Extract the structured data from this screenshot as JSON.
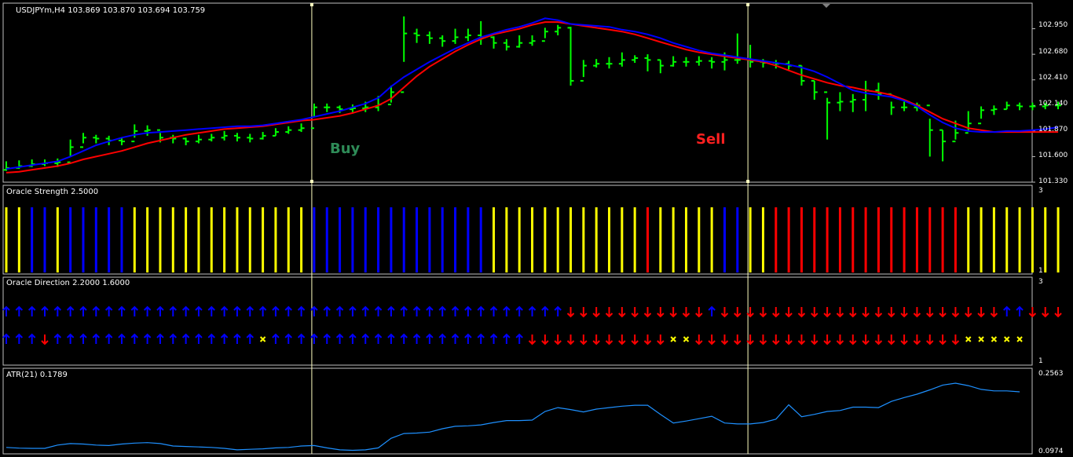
{
  "colors": {
    "background": "#000000",
    "frame": "#c0c0c0",
    "bar_up": "#00ff00",
    "ma_fast": "#0000ff",
    "ma_slow": "#ff0000",
    "strength_yellow": "#ffff00",
    "strength_blue": "#0000ff",
    "strength_red": "#ff0000",
    "arrow_up": "#0000ff",
    "arrow_down": "#ff0000",
    "cross": "#ffff00",
    "atr_line": "#1e90ff",
    "vline": "#ffffc0",
    "buy": "#2e8b57",
    "sell": "#ff2020"
  },
  "chart_data": [
    {
      "type": "ohlc",
      "name": "price",
      "header": "USDJPYm,H4  103.869 103.870 103.694 103.759",
      "ylim": [
        101.33,
        103.22
      ],
      "yticks": [
        "102.950",
        "102.680",
        "102.410",
        "102.140",
        "101.870",
        "101.600",
        "101.330"
      ],
      "ytick_values": [
        102.95,
        102.68,
        102.41,
        102.14,
        101.87,
        101.6,
        101.33
      ],
      "signals": [
        {
          "label": "Buy",
          "bar": 24
        },
        {
          "label": "Sell",
          "bar": 58
        }
      ],
      "close": [
        101.48,
        101.5,
        101.52,
        101.53,
        101.54,
        101.7,
        101.8,
        101.79,
        101.77,
        101.76,
        101.87,
        101.88,
        101.8,
        101.79,
        101.76,
        101.78,
        101.8,
        101.82,
        101.8,
        101.79,
        101.82,
        101.86,
        101.88,
        101.9,
        102.12,
        102.12,
        102.1,
        102.11,
        102.12,
        102.15,
        102.28,
        102.9,
        102.88,
        102.85,
        102.82,
        102.86,
        102.88,
        102.86,
        102.8,
        102.76,
        102.8,
        102.82,
        102.92,
        102.96,
        102.4,
        102.56,
        102.58,
        102.58,
        102.62,
        102.64,
        102.62,
        102.56,
        102.6,
        102.6,
        102.61,
        102.6,
        102.62,
        102.62,
        102.6,
        102.59,
        102.58,
        102.56,
        102.4,
        102.28,
        102.17,
        102.18,
        102.2,
        102.3,
        102.26,
        102.12,
        102.12,
        102.14,
        101.88,
        101.76,
        101.85,
        101.95,
        102.09,
        102.1,
        102.14,
        102.13,
        102.13,
        102.14,
        102.14
      ],
      "high": [
        101.55,
        101.56,
        101.57,
        101.57,
        101.58,
        101.78,
        101.85,
        101.83,
        101.82,
        101.8,
        101.94,
        101.93,
        101.85,
        101.83,
        101.8,
        101.83,
        101.84,
        101.87,
        101.85,
        101.84,
        101.86,
        101.9,
        101.92,
        101.95,
        102.16,
        102.16,
        102.14,
        102.15,
        102.18,
        102.24,
        102.35,
        103.08,
        102.95,
        102.92,
        102.88,
        102.95,
        102.95,
        103.03,
        102.87,
        102.84,
        102.88,
        102.88,
        102.96,
        102.99,
        102.97,
        102.62,
        102.63,
        102.65,
        102.7,
        102.67,
        102.68,
        102.62,
        102.66,
        102.65,
        102.66,
        102.65,
        102.7,
        102.9,
        102.78,
        102.63,
        102.62,
        102.61,
        102.56,
        102.4,
        102.22,
        102.28,
        102.26,
        102.4,
        102.38,
        102.18,
        102.18,
        102.17,
        102.0,
        101.88,
        101.98,
        102.08,
        102.13,
        102.14,
        102.18,
        102.17,
        102.17,
        102.17,
        102.18
      ],
      "low": [
        101.45,
        101.47,
        101.49,
        101.5,
        101.49,
        101.6,
        101.74,
        101.74,
        101.72,
        101.72,
        101.8,
        101.82,
        101.75,
        101.74,
        101.72,
        101.74,
        101.76,
        101.77,
        101.76,
        101.75,
        101.78,
        101.82,
        101.84,
        101.86,
        102.02,
        102.07,
        102.06,
        102.07,
        102.07,
        102.08,
        102.17,
        102.6,
        102.8,
        102.79,
        102.76,
        102.79,
        102.82,
        102.78,
        102.74,
        102.72,
        102.75,
        102.77,
        102.85,
        102.88,
        102.35,
        102.44,
        102.54,
        102.53,
        102.55,
        102.59,
        102.5,
        102.48,
        102.55,
        102.55,
        102.56,
        102.53,
        102.51,
        102.58,
        102.54,
        102.54,
        102.53,
        102.52,
        102.35,
        102.2,
        101.78,
        102.08,
        102.07,
        102.08,
        102.2,
        102.04,
        102.08,
        102.08,
        101.6,
        101.55,
        101.78,
        101.87,
        102.0,
        102.04,
        102.1,
        102.09,
        102.09,
        102.1,
        102.1
      ],
      "ma_fast": [
        101.47,
        101.49,
        101.51,
        101.53,
        101.55,
        101.6,
        101.66,
        101.72,
        101.76,
        101.8,
        101.83,
        101.85,
        101.86,
        101.87,
        101.88,
        101.89,
        101.9,
        101.91,
        101.92,
        101.92,
        101.93,
        101.95,
        101.97,
        101.99,
        102.02,
        102.05,
        102.08,
        102.12,
        102.16,
        102.22,
        102.34,
        102.44,
        102.52,
        102.6,
        102.67,
        102.74,
        102.8,
        102.86,
        102.9,
        102.94,
        102.97,
        103.01,
        103.06,
        103.04,
        103.0,
        102.99,
        102.98,
        102.97,
        102.94,
        102.92,
        102.89,
        102.85,
        102.8,
        102.76,
        102.72,
        102.69,
        102.67,
        102.65,
        102.63,
        102.61,
        102.59,
        102.57,
        102.54,
        102.5,
        102.44,
        102.37,
        102.3,
        102.27,
        102.25,
        102.23,
        102.19,
        102.13,
        102.04,
        101.96,
        101.9,
        101.87,
        101.86,
        101.86,
        101.87,
        101.87,
        101.88,
        101.89,
        101.91
      ],
      "ma_slow": [
        101.43,
        101.44,
        101.46,
        101.48,
        101.5,
        101.53,
        101.57,
        101.6,
        101.63,
        101.66,
        101.7,
        101.74,
        101.77,
        101.8,
        101.83,
        101.85,
        101.87,
        101.89,
        101.9,
        101.91,
        101.92,
        101.94,
        101.96,
        101.98,
        101.99,
        102.01,
        102.03,
        102.06,
        102.1,
        102.14,
        102.21,
        102.33,
        102.45,
        102.55,
        102.63,
        102.71,
        102.78,
        102.84,
        102.89,
        102.92,
        102.95,
        102.99,
        103.02,
        103.02,
        103.0,
        102.98,
        102.96,
        102.94,
        102.92,
        102.89,
        102.85,
        102.81,
        102.77,
        102.73,
        102.7,
        102.68,
        102.66,
        102.64,
        102.62,
        102.6,
        102.56,
        102.51,
        102.46,
        102.42,
        102.38,
        102.35,
        102.33,
        102.3,
        102.28,
        102.25,
        102.2,
        102.14,
        102.07,
        102.0,
        101.95,
        101.9,
        101.88,
        101.86,
        101.86,
        101.86,
        101.86,
        101.86,
        101.86
      ]
    },
    {
      "type": "bar",
      "name": "strength",
      "header": "Oracle Strength 2.5000",
      "yticks": [
        "3",
        "1"
      ],
      "colors": [
        "y",
        "y",
        "b",
        "b",
        "y",
        "b",
        "b",
        "b",
        "b",
        "b",
        "y",
        "y",
        "y",
        "y",
        "y",
        "y",
        "y",
        "y",
        "y",
        "y",
        "y",
        "y",
        "y",
        "y",
        "b",
        "b",
        "b",
        "b",
        "b",
        "b",
        "b",
        "b",
        "b",
        "b",
        "b",
        "b",
        "b",
        "b",
        "y",
        "y",
        "y",
        "y",
        "y",
        "y",
        "y",
        "y",
        "y",
        "y",
        "y",
        "y",
        "r",
        "y",
        "y",
        "y",
        "y",
        "y",
        "b",
        "b",
        "y",
        "y",
        "r",
        "r",
        "r",
        "r",
        "r",
        "r",
        "r",
        "r",
        "r",
        "r",
        "r",
        "r",
        "r",
        "r",
        "r",
        "y",
        "y",
        "y",
        "y",
        "y",
        "y",
        "y",
        "y"
      ]
    },
    {
      "type": "scatter",
      "name": "direction",
      "header": "Oracle Direction 2.2000 1.6000",
      "yticks": [
        "3",
        "1"
      ],
      "row1": "UUUUUUUUUUUUUUUUUUUUUUUUUUUUUUUUUUUUUUUUUUUUDDDDDDDDDDDUDDDDDDDDDDDDDDDDDDDDDDUUDDD",
      "row2": "UUUDUUUUUUUUUUUUUUUUXUUUUUUUUUUUUUUUUUUUUDDDDDDDDDDDXXDDDDDDDDDDDDDDDDDDDDDXXXXX"
    },
    {
      "type": "line",
      "name": "atr",
      "header": "ATR(21) 0.1789",
      "ylim": [
        0.0974,
        0.2563
      ],
      "yticks": [
        "0.2563",
        "0.0974"
      ],
      "values": [
        0.101,
        0.0995,
        0.099,
        0.099,
        0.106,
        0.109,
        0.108,
        0.106,
        0.105,
        0.108,
        0.11,
        0.111,
        0.109,
        0.104,
        0.103,
        0.102,
        0.101,
        0.099,
        0.096,
        0.097,
        0.098,
        0.1,
        0.101,
        0.104,
        0.105,
        0.1,
        0.096,
        0.095,
        0.096,
        0.1,
        0.12,
        0.13,
        0.131,
        0.133,
        0.14,
        0.145,
        0.146,
        0.148,
        0.153,
        0.157,
        0.157,
        0.158,
        0.176,
        0.184,
        0.18,
        0.175,
        0.181,
        0.184,
        0.187,
        0.189,
        0.189,
        0.17,
        0.152,
        0.156,
        0.161,
        0.166,
        0.152,
        0.15,
        0.15,
        0.153,
        0.16,
        0.19,
        0.165,
        0.17,
        0.176,
        0.178,
        0.185,
        0.185,
        0.184,
        0.197,
        0.205,
        0.212,
        0.221,
        0.231,
        0.235,
        0.23,
        0.222,
        0.219,
        0.219,
        0.217
      ]
    }
  ]
}
